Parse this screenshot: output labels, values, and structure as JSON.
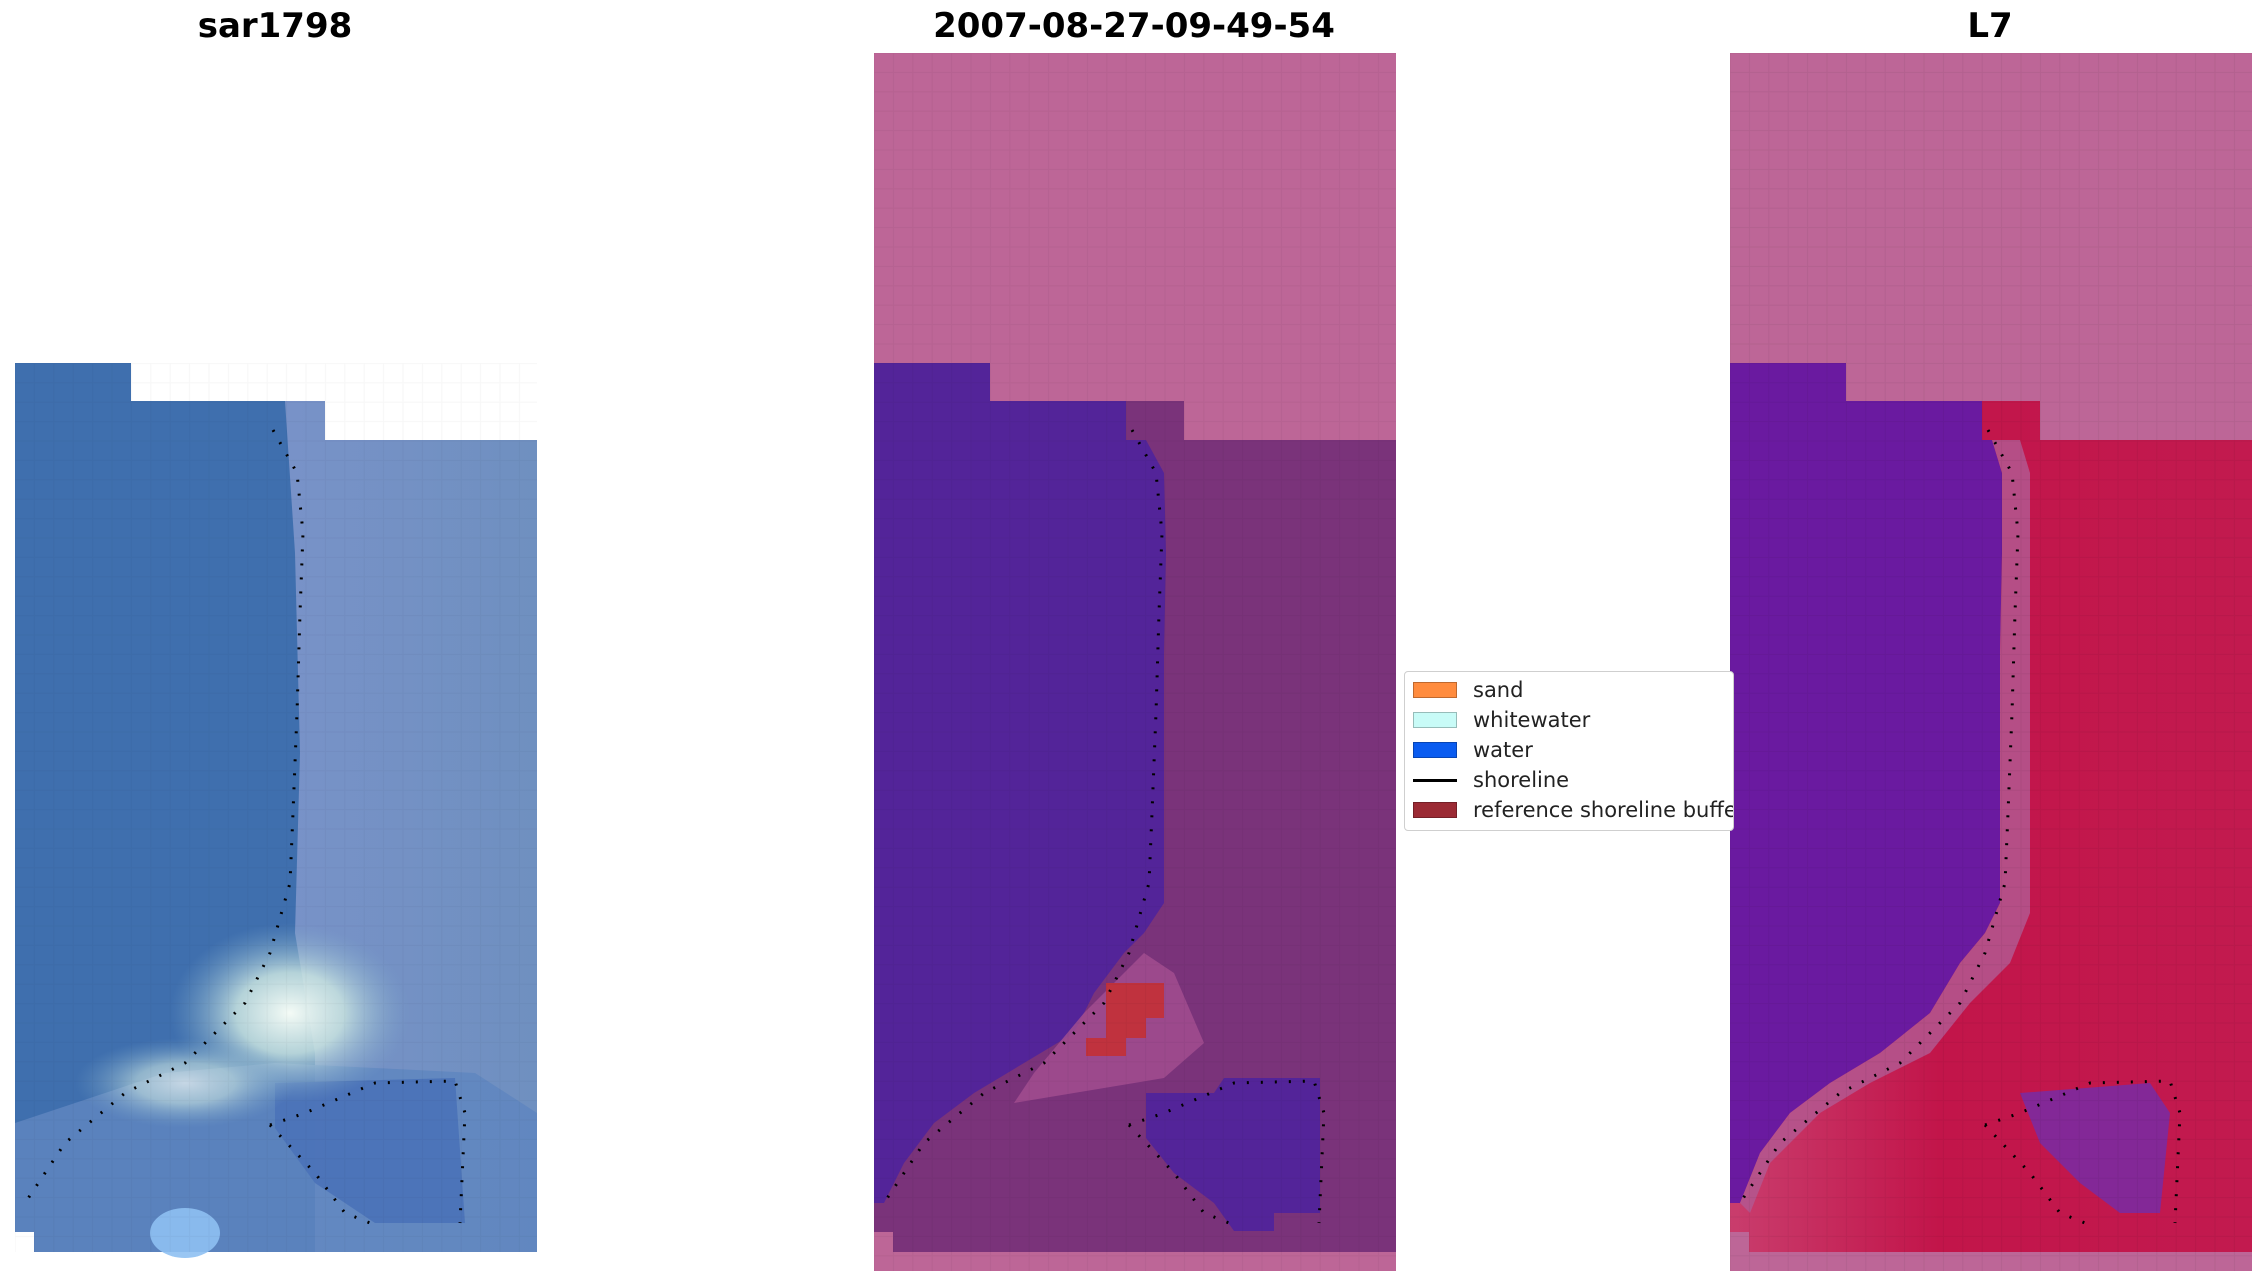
{
  "panels": [
    {
      "title": "sar1798"
    },
    {
      "title": "2007-08-27-09-49-54"
    },
    {
      "title": "L7"
    }
  ],
  "legend": {
    "items": [
      {
        "label": "sand",
        "kind": "patch",
        "color": "#ff8c3f"
      },
      {
        "label": "whitewater",
        "kind": "patch",
        "color": "#c8fbf7"
      },
      {
        "label": "water",
        "kind": "patch",
        "color": "#0a5cf0"
      },
      {
        "label": "shoreline",
        "kind": "line",
        "color": "#000000"
      },
      {
        "label": "reference shoreline buffer",
        "kind": "patch",
        "color": "#9b2a34"
      }
    ]
  },
  "colors": {
    "rgb_water": "#3f6fae",
    "rgb_whitewater": "#eef6f2",
    "classified_background": "#bd6697",
    "classified_water": "#532499",
    "classified_land": "#7a337a",
    "buffer_red": "#c0323e",
    "l7_water": "#6a1aa0",
    "l7_land": "#c2154a"
  }
}
